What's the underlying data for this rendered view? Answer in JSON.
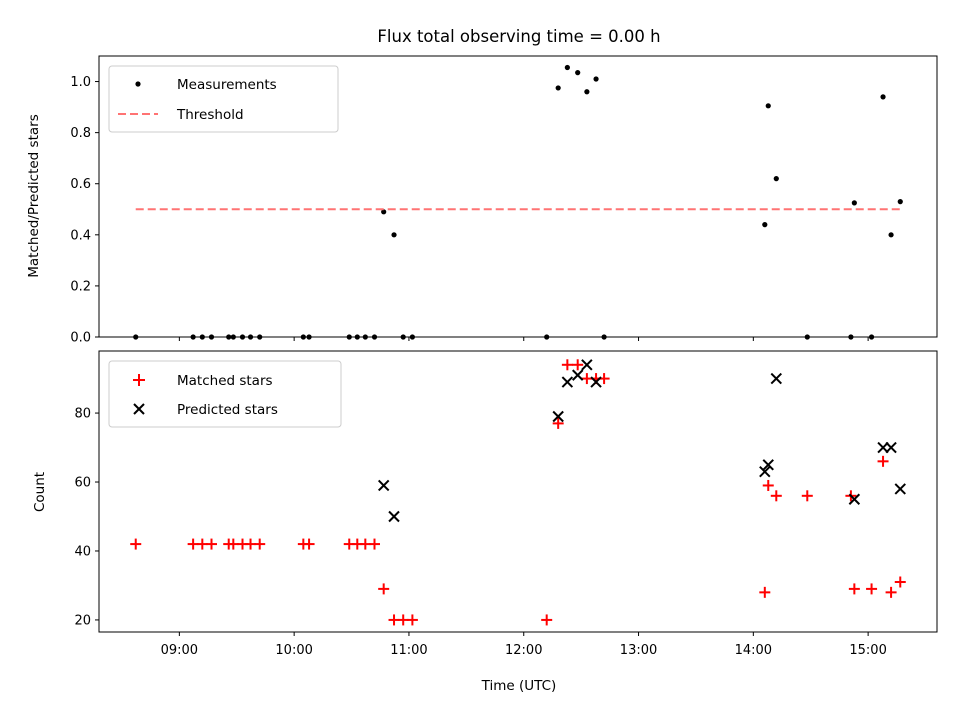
{
  "chart_data": [
    {
      "type": "scatter",
      "title": "Flux total observing time = 0.00 h",
      "xlabel": "",
      "ylabel": "Matched/Predicted stars",
      "ylim": [
        0,
        1.1
      ],
      "yticks": [
        0.0,
        0.2,
        0.4,
        0.6,
        0.8,
        1.0
      ],
      "ytick_labels": [
        "0.0",
        "0.2",
        "0.4",
        "0.6",
        "0.8",
        "1.0"
      ],
      "xlim_hours": [
        8.3,
        15.6
      ],
      "legend_position": "top-left",
      "series": [
        {
          "name": "Measurements",
          "marker": "dot",
          "color": "#000000",
          "points": [
            [
              8.62,
              0.0
            ],
            [
              9.12,
              0.0
            ],
            [
              9.2,
              0.0
            ],
            [
              9.28,
              0.0
            ],
            [
              9.43,
              0.0
            ],
            [
              9.47,
              0.0
            ],
            [
              9.55,
              0.0
            ],
            [
              9.62,
              0.0
            ],
            [
              9.7,
              0.0
            ],
            [
              10.08,
              0.0
            ],
            [
              10.13,
              0.0
            ],
            [
              10.48,
              0.0
            ],
            [
              10.55,
              0.0
            ],
            [
              10.62,
              0.0
            ],
            [
              10.7,
              0.0
            ],
            [
              10.78,
              0.49
            ],
            [
              10.87,
              0.4
            ],
            [
              10.95,
              0.0
            ],
            [
              11.03,
              0.0
            ],
            [
              12.2,
              0.0
            ],
            [
              12.3,
              0.975
            ],
            [
              12.38,
              1.055
            ],
            [
              12.47,
              1.035
            ],
            [
              12.55,
              0.96
            ],
            [
              12.63,
              1.01
            ],
            [
              12.7,
              0.0
            ],
            [
              14.1,
              0.44
            ],
            [
              14.13,
              0.905
            ],
            [
              14.2,
              0.62
            ],
            [
              14.47,
              0.0
            ],
            [
              14.85,
              0.0
            ],
            [
              14.88,
              0.525
            ],
            [
              15.03,
              0.0
            ],
            [
              15.13,
              0.94
            ],
            [
              15.2,
              0.4
            ],
            [
              15.28,
              0.53
            ]
          ]
        },
        {
          "name": "Threshold",
          "style": "dashed",
          "color": "#ff7373",
          "x_range": [
            8.62,
            15.28
          ],
          "value": 0.5
        }
      ]
    },
    {
      "type": "scatter",
      "title": "",
      "xlabel": "Time (UTC)",
      "ylabel": "Count",
      "ylim": [
        16.5,
        98
      ],
      "yticks": [
        20,
        40,
        60,
        80
      ],
      "ytick_labels": [
        "20",
        "40",
        "60",
        "80"
      ],
      "xlim_hours": [
        8.3,
        15.6
      ],
      "xticks_hours": [
        9,
        10,
        11,
        12,
        13,
        14,
        15
      ],
      "xtick_labels": [
        "09:00",
        "10:00",
        "11:00",
        "12:00",
        "13:00",
        "14:00",
        "15:00"
      ],
      "legend_position": "top-left",
      "series": [
        {
          "name": "Matched stars",
          "marker": "plus",
          "color": "#ff0000",
          "points": [
            [
              8.62,
              42
            ],
            [
              9.12,
              42
            ],
            [
              9.2,
              42
            ],
            [
              9.28,
              42
            ],
            [
              9.43,
              42
            ],
            [
              9.47,
              42
            ],
            [
              9.55,
              42
            ],
            [
              9.62,
              42
            ],
            [
              9.7,
              42
            ],
            [
              10.08,
              42
            ],
            [
              10.13,
              42
            ],
            [
              10.48,
              42
            ],
            [
              10.55,
              42
            ],
            [
              10.62,
              42
            ],
            [
              10.7,
              42
            ],
            [
              10.78,
              29
            ],
            [
              10.87,
              20
            ],
            [
              10.95,
              20
            ],
            [
              11.03,
              20
            ],
            [
              12.2,
              20
            ],
            [
              12.3,
              77
            ],
            [
              12.38,
              94
            ],
            [
              12.47,
              94
            ],
            [
              12.55,
              90
            ],
            [
              12.63,
              90
            ],
            [
              12.7,
              90
            ],
            [
              14.1,
              28
            ],
            [
              14.13,
              59
            ],
            [
              14.2,
              56
            ],
            [
              14.47,
              56
            ],
            [
              14.85,
              56
            ],
            [
              14.88,
              29
            ],
            [
              15.03,
              29
            ],
            [
              15.13,
              66
            ],
            [
              15.2,
              28
            ],
            [
              15.28,
              31
            ]
          ]
        },
        {
          "name": "Predicted stars",
          "marker": "x",
          "color": "#000000",
          "points": [
            [
              10.78,
              59
            ],
            [
              10.87,
              50
            ],
            [
              12.3,
              79
            ],
            [
              12.38,
              89
            ],
            [
              12.47,
              91
            ],
            [
              12.55,
              94
            ],
            [
              12.63,
              89
            ],
            [
              14.1,
              63
            ],
            [
              14.13,
              65
            ],
            [
              14.2,
              90
            ],
            [
              14.88,
              55
            ],
            [
              15.13,
              70
            ],
            [
              15.2,
              70
            ],
            [
              15.28,
              58
            ]
          ]
        }
      ]
    }
  ]
}
